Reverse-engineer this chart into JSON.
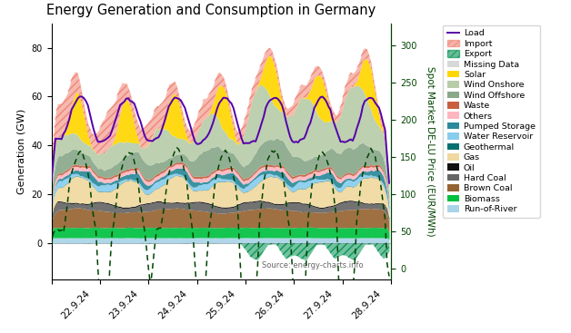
{
  "title": "Energy Generation and Consumption in Germany",
  "ylabel_left": "Generation (GW)",
  "ylabel_right": "Spot Market DE-LU Price (EUR/MWh)",
  "source_text": "Source: energy-charts.info",
  "n_points": 168,
  "date_labels": [
    "22.9.24",
    "23.9.24",
    "24.9.24",
    "25.9.24",
    "26.9.24",
    "27.9.24",
    "28.9.24"
  ],
  "ylim_left": [
    -15,
    90
  ],
  "ylim_right": [
    -15,
    330
  ],
  "right_yticks": [
    0,
    50,
    100,
    150,
    200,
    250,
    300
  ],
  "right_ytick_labels": [
    "0",
    "50",
    "100",
    "150",
    "200",
    "250",
    "300"
  ],
  "colors": {
    "run_of_river": "#aad4e8",
    "biomass": "#00c040",
    "brown_coal": "#966432",
    "hard_coal": "#666666",
    "oil": "#111111",
    "gas": "#f0d8a0",
    "geothermal": "#007070",
    "water_reservoir": "#88ccee",
    "pumped_storage": "#2a8a9a",
    "others": "#ffb6c1",
    "waste": "#c86040",
    "wind_offshore": "#8aa88a",
    "wind_onshore": "#b8ccaa",
    "solar": "#ffd700",
    "missing_data": "#d8d8d8",
    "export_fill": "#009050",
    "import_fill": "#f08070",
    "load": "#5500aa",
    "spot_price": "#004400"
  }
}
